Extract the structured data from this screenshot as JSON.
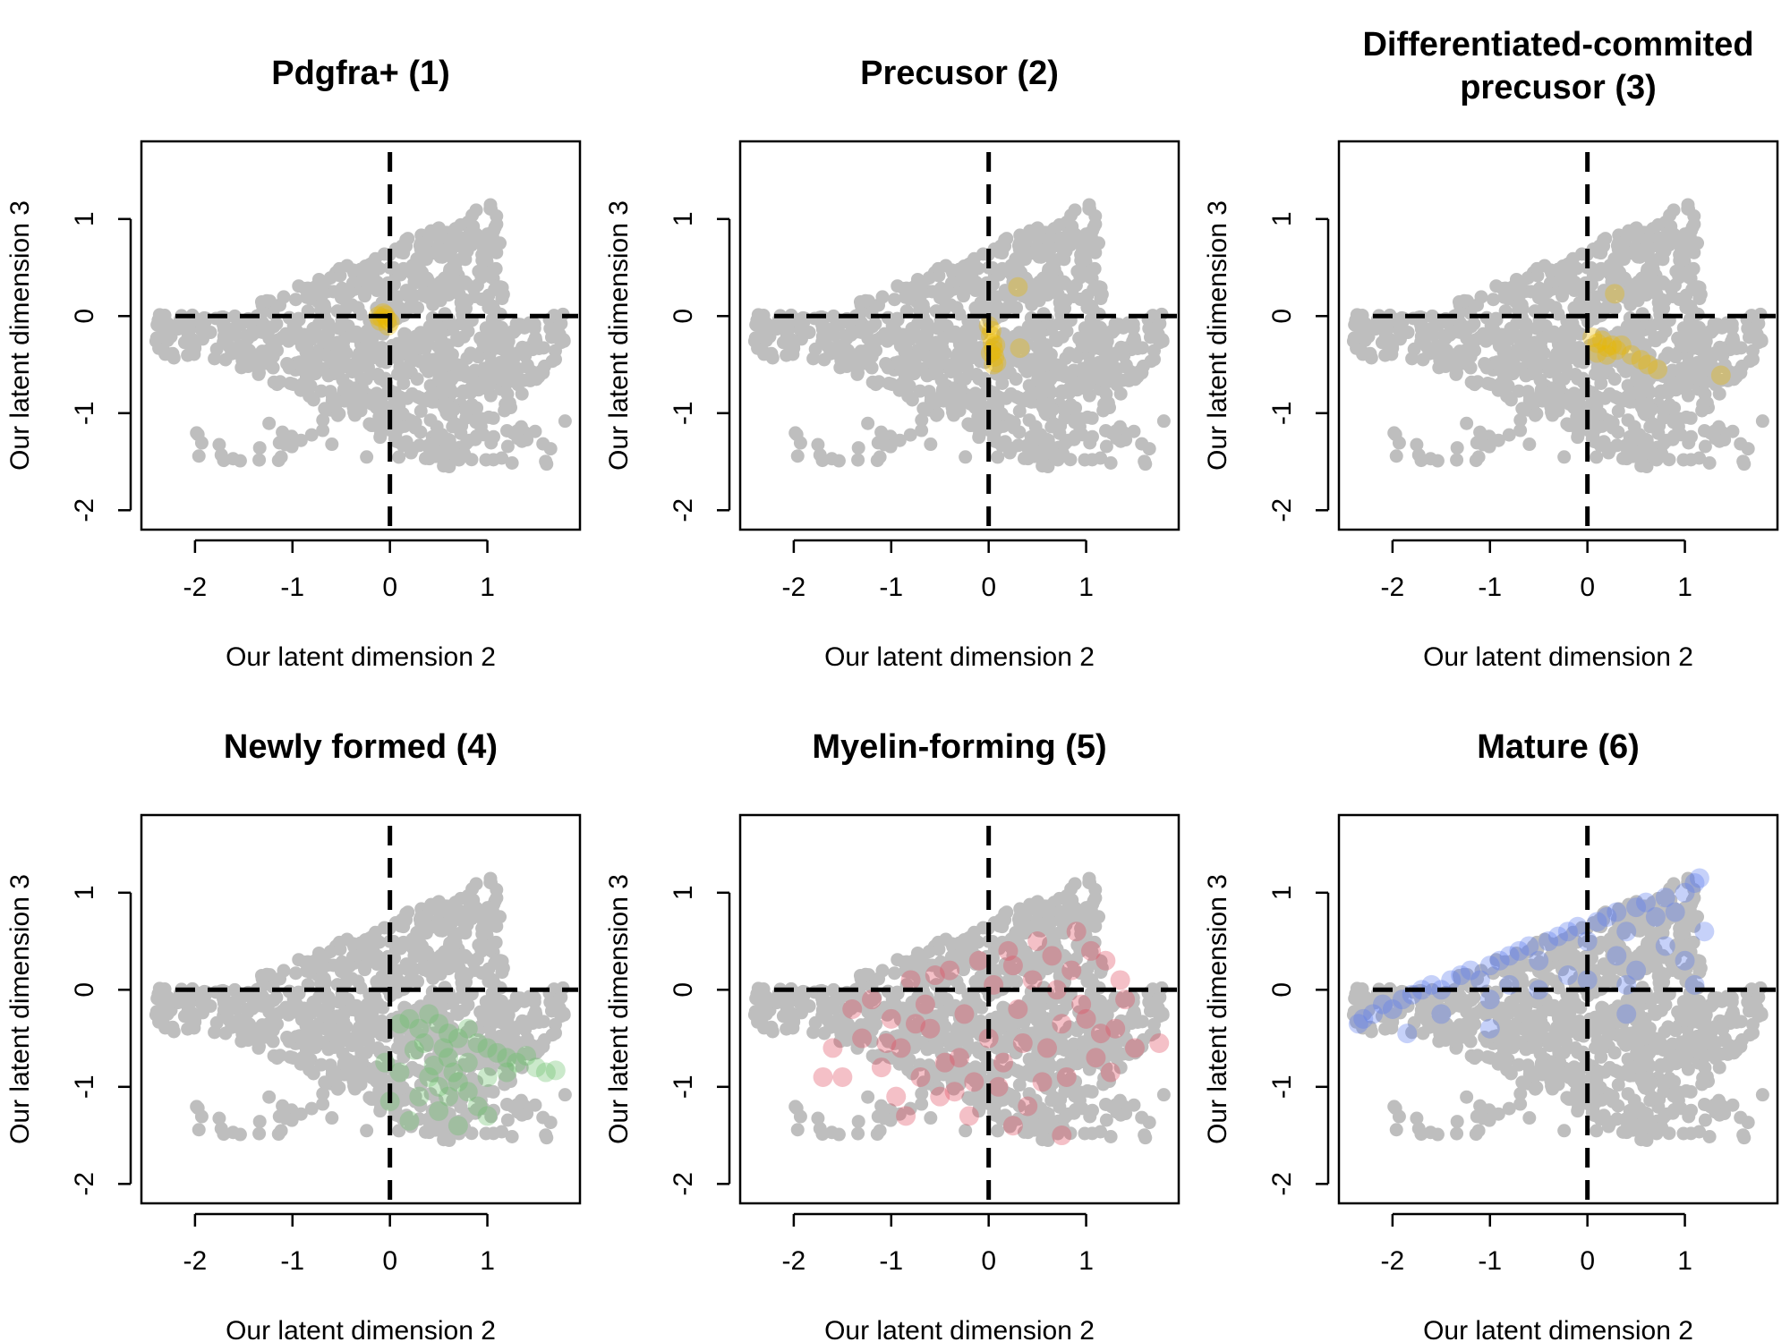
{
  "chart_data": [
    {
      "type": "scatter",
      "title": [
        "Pdgfra+ (1)"
      ],
      "xlabel": "Our latent dimension 2",
      "ylabel": "Our latent dimension 3",
      "xlim": [
        -2.55,
        1.95
      ],
      "ylim": [
        -2.2,
        1.8
      ],
      "xticks": [
        "-2",
        "-1",
        "0",
        "1"
      ],
      "yticks": [
        "-2",
        "-1",
        "0",
        "1"
      ],
      "reference_lines": {
        "x": 0,
        "y": 0
      },
      "highlight_color": "#E8B800",
      "highlight_points": [
        [
          -0.12,
          0.0
        ],
        [
          -0.08,
          -0.02
        ],
        [
          -0.05,
          0.01
        ],
        [
          -0.1,
          -0.05
        ],
        [
          -0.03,
          -0.03
        ],
        [
          -0.07,
          0.03
        ],
        [
          0.0,
          -0.06
        ],
        [
          -0.02,
          -0.1
        ]
      ]
    },
    {
      "type": "scatter",
      "title": [
        "Precusor (2)"
      ],
      "xlabel": "Our latent dimension 2",
      "ylabel": "Our latent dimension 3",
      "xlim": [
        -2.55,
        1.95
      ],
      "ylim": [
        -2.2,
        1.8
      ],
      "xticks": [
        "-2",
        "-1",
        "0",
        "1"
      ],
      "yticks": [
        "-2",
        "-1",
        "0",
        "1"
      ],
      "reference_lines": {
        "x": 0,
        "y": 0
      },
      "highlight_color": "#E8B800",
      "highlight_points": [
        [
          0.0,
          -0.1
        ],
        [
          0.02,
          -0.2
        ],
        [
          0.04,
          -0.28
        ],
        [
          0.05,
          -0.35
        ],
        [
          0.06,
          -0.42
        ],
        [
          0.03,
          -0.15
        ],
        [
          0.07,
          -0.3
        ],
        [
          0.02,
          -0.38
        ],
        [
          0.08,
          -0.48
        ],
        [
          0.05,
          -0.5
        ],
        [
          0.3,
          0.3
        ],
        [
          0.32,
          -0.33
        ]
      ]
    },
    {
      "type": "scatter",
      "title": [
        "Differentiated-commited",
        "precusor (3)"
      ],
      "xlabel": "Our latent dimension 2",
      "ylabel": "Our latent dimension 3",
      "xlim": [
        -2.55,
        1.95
      ],
      "ylim": [
        -2.2,
        1.8
      ],
      "xticks": [
        "-2",
        "-1",
        "0",
        "1"
      ],
      "yticks": [
        "-2",
        "-1",
        "0",
        "1"
      ],
      "reference_lines": {
        "x": 0,
        "y": 0
      },
      "highlight_color": "#E8B800",
      "highlight_points": [
        [
          0.05,
          -0.22
        ],
        [
          0.1,
          -0.28
        ],
        [
          0.15,
          -0.25
        ],
        [
          0.2,
          -0.32
        ],
        [
          0.25,
          -0.3
        ],
        [
          0.3,
          -0.35
        ],
        [
          0.35,
          -0.3
        ],
        [
          0.45,
          -0.4
        ],
        [
          0.55,
          -0.45
        ],
        [
          0.62,
          -0.5
        ],
        [
          0.72,
          -0.55
        ],
        [
          0.1,
          -0.38
        ],
        [
          0.2,
          -0.4
        ],
        [
          0.28,
          0.23
        ],
        [
          1.37,
          -0.61
        ]
      ]
    },
    {
      "type": "scatter",
      "title": [
        "Newly formed (4)"
      ],
      "xlabel": "Our latent dimension 2",
      "ylabel": "Our latent dimension 3",
      "xlim": [
        -2.55,
        1.95
      ],
      "ylim": [
        -2.2,
        1.8
      ],
      "xticks": [
        "-2",
        "-1",
        "0",
        "1"
      ],
      "yticks": [
        "-2",
        "-1",
        "0",
        "1"
      ],
      "reference_lines": {
        "x": 0,
        "y": 0
      },
      "highlight_color": "#6BBF6B",
      "highlight_points": [
        [
          0.1,
          -0.35
        ],
        [
          0.2,
          -0.3
        ],
        [
          0.3,
          -0.4
        ],
        [
          0.4,
          -0.25
        ],
        [
          0.5,
          -0.35
        ],
        [
          0.6,
          -0.45
        ],
        [
          0.7,
          -0.5
        ],
        [
          0.8,
          -0.4
        ],
        [
          0.9,
          -0.55
        ],
        [
          1.0,
          -0.6
        ],
        [
          1.1,
          -0.65
        ],
        [
          1.2,
          -0.7
        ],
        [
          1.3,
          -0.75
        ],
        [
          1.4,
          -0.68
        ],
        [
          1.5,
          -0.8
        ],
        [
          1.6,
          -0.85
        ],
        [
          1.7,
          -0.83
        ],
        [
          0.4,
          -0.9
        ],
        [
          0.5,
          -1.0
        ],
        [
          0.6,
          -1.1
        ],
        [
          0.7,
          -0.95
        ],
        [
          0.8,
          -1.05
        ],
        [
          0.9,
          -1.2
        ],
        [
          1.0,
          -1.3
        ],
        [
          0.5,
          -1.25
        ],
        [
          0.7,
          -1.4
        ],
        [
          0.3,
          -1.1
        ],
        [
          -0.05,
          -0.75
        ],
        [
          0.1,
          -0.85
        ],
        [
          0.0,
          -1.15
        ],
        [
          0.2,
          -1.35
        ],
        [
          0.6,
          -0.7
        ],
        [
          0.8,
          -0.75
        ],
        [
          1.0,
          -0.9
        ],
        [
          1.2,
          -0.85
        ],
        [
          0.35,
          -0.55
        ],
        [
          0.55,
          -0.6
        ],
        [
          0.45,
          -0.78
        ],
        [
          0.65,
          -0.85
        ],
        [
          0.25,
          -0.62
        ]
      ]
    },
    {
      "type": "scatter",
      "title": [
        "Myelin-forming (5)"
      ],
      "xlabel": "Our latent dimension 2",
      "ylabel": "Our latent dimension 3",
      "xlim": [
        -2.55,
        1.95
      ],
      "ylim": [
        -2.2,
        1.8
      ],
      "xticks": [
        "-2",
        "-1",
        "0",
        "1"
      ],
      "yticks": [
        "-2",
        "-1",
        "0",
        "1"
      ],
      "reference_lines": {
        "x": 0,
        "y": 0
      },
      "highlight_color": "#E04A5F",
      "highlight_points": [
        [
          -1.4,
          -0.2
        ],
        [
          -1.3,
          -0.5
        ],
        [
          -1.2,
          -0.1
        ],
        [
          -1.1,
          -0.8
        ],
        [
          -1.0,
          -0.3
        ],
        [
          -0.9,
          -0.6
        ],
        [
          -0.8,
          0.1
        ],
        [
          -0.7,
          -0.9
        ],
        [
          -0.6,
          -0.4
        ],
        [
          -0.5,
          -1.1
        ],
        [
          -0.4,
          0.2
        ],
        [
          -0.3,
          -0.7
        ],
        [
          -0.2,
          -1.3
        ],
        [
          -0.1,
          0.3
        ],
        [
          0.0,
          -0.5
        ],
        [
          0.1,
          -1.0
        ],
        [
          0.2,
          0.4
        ],
        [
          0.3,
          -0.2
        ],
        [
          0.4,
          -1.2
        ],
        [
          0.5,
          0.5
        ],
        [
          0.6,
          -0.6
        ],
        [
          0.7,
          0.0
        ],
        [
          0.8,
          -0.9
        ],
        [
          0.9,
          0.6
        ],
        [
          1.0,
          -0.3
        ],
        [
          1.1,
          -0.7
        ],
        [
          1.2,
          0.3
        ],
        [
          1.3,
          -0.4
        ],
        [
          1.4,
          -0.1
        ],
        [
          1.5,
          -0.6
        ],
        [
          -1.7,
          -0.9
        ],
        [
          -1.6,
          -0.6
        ],
        [
          -1.5,
          -0.9
        ],
        [
          -0.95,
          -1.1
        ],
        [
          -0.85,
          -1.3
        ],
        [
          -0.35,
          -1.05
        ],
        [
          0.25,
          -1.4
        ],
        [
          0.75,
          -1.5
        ],
        [
          1.75,
          -0.55
        ],
        [
          -0.55,
          0.15
        ],
        [
          -0.25,
          -0.25
        ],
        [
          0.05,
          0.05
        ],
        [
          0.35,
          -0.55
        ],
        [
          0.65,
          0.35
        ],
        [
          0.95,
          -0.15
        ],
        [
          1.25,
          -0.85
        ],
        [
          -0.75,
          -0.35
        ],
        [
          -0.45,
          -0.75
        ],
        [
          0.15,
          -0.75
        ],
        [
          0.45,
          0.1
        ],
        [
          0.85,
          0.2
        ],
        [
          1.05,
          0.4
        ],
        [
          -1.05,
          -0.55
        ],
        [
          -0.15,
          -0.95
        ],
        [
          0.55,
          -0.95
        ],
        [
          1.35,
          0.1
        ],
        [
          -0.65,
          -0.15
        ],
        [
          0.25,
          0.25
        ],
        [
          0.75,
          -0.35
        ],
        [
          1.15,
          -0.45
        ]
      ]
    },
    {
      "type": "scatter",
      "title": [
        "Mature (6)"
      ],
      "xlabel": "Our latent dimension 2",
      "ylabel": "Our latent dimension 3",
      "xlim": [
        -2.55,
        1.95
      ],
      "ylim": [
        -2.2,
        1.8
      ],
      "xticks": [
        "-2",
        "-1",
        "0",
        "1"
      ],
      "yticks": [
        "-2",
        "-1",
        "0",
        "1"
      ],
      "reference_lines": {
        "x": 0,
        "y": 0
      },
      "highlight_color": "#5B7BEF",
      "highlight_points": [
        [
          -2.3,
          -0.3
        ],
        [
          -2.2,
          -0.25
        ],
        [
          -2.1,
          -0.15
        ],
        [
          -2.0,
          -0.2
        ],
        [
          -1.9,
          -0.1
        ],
        [
          -1.8,
          -0.05
        ],
        [
          -1.7,
          0.0
        ],
        [
          -1.6,
          0.05
        ],
        [
          -1.5,
          0.0
        ],
        [
          -1.4,
          0.1
        ],
        [
          -1.3,
          0.15
        ],
        [
          -1.2,
          0.2
        ],
        [
          -1.1,
          0.1
        ],
        [
          -1.0,
          0.25
        ],
        [
          -0.9,
          0.3
        ],
        [
          -0.8,
          0.35
        ],
        [
          -0.7,
          0.4
        ],
        [
          -0.6,
          0.45
        ],
        [
          -0.5,
          0.3
        ],
        [
          -0.4,
          0.5
        ],
        [
          -0.3,
          0.55
        ],
        [
          -0.2,
          0.6
        ],
        [
          -0.1,
          0.65
        ],
        [
          0.0,
          0.5
        ],
        [
          0.1,
          0.7
        ],
        [
          0.2,
          0.75
        ],
        [
          0.3,
          0.8
        ],
        [
          0.4,
          0.6
        ],
        [
          0.5,
          0.85
        ],
        [
          0.6,
          0.9
        ],
        [
          0.7,
          0.75
        ],
        [
          0.8,
          0.95
        ],
        [
          0.9,
          0.8
        ],
        [
          1.0,
          1.0
        ],
        [
          1.1,
          1.1
        ],
        [
          1.15,
          1.15
        ],
        [
          1.2,
          0.6
        ],
        [
          -1.0,
          -0.1
        ],
        [
          -0.5,
          0.0
        ],
        [
          0.0,
          0.1
        ],
        [
          0.5,
          0.2
        ],
        [
          1.0,
          0.3
        ],
        [
          -1.5,
          -0.25
        ],
        [
          -0.8,
          0.05
        ],
        [
          0.3,
          0.35
        ],
        [
          0.8,
          0.45
        ],
        [
          -2.35,
          -0.35
        ],
        [
          -1.85,
          -0.45
        ],
        [
          -1.0,
          -0.4
        ],
        [
          -0.2,
          0.15
        ],
        [
          0.4,
          0.05
        ],
        [
          1.1,
          0.05
        ],
        [
          0.4,
          -0.25
        ]
      ]
    }
  ]
}
